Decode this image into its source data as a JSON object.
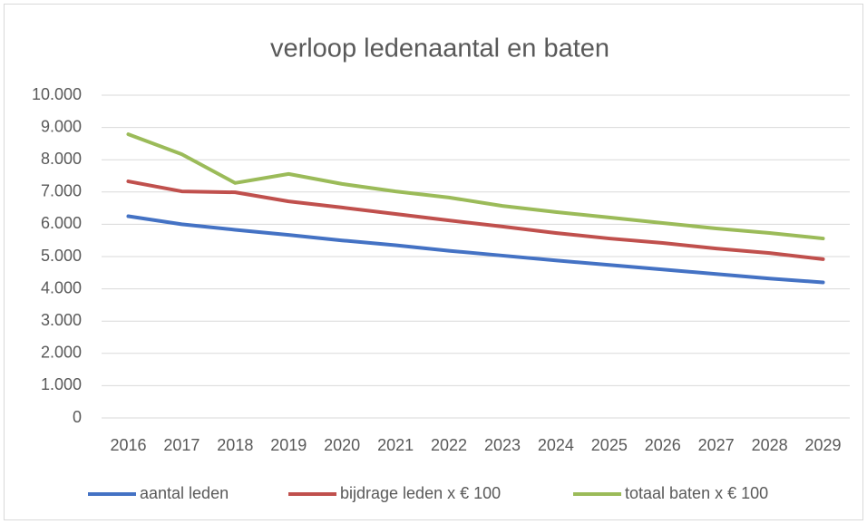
{
  "chart_data": {
    "type": "line",
    "title": "verloop ledenaantal en baten",
    "categories": [
      "2016",
      "2017",
      "2018",
      "2019",
      "2020",
      "2021",
      "2022",
      "2023",
      "2024",
      "2025",
      "2026",
      "2027",
      "2028",
      "2029"
    ],
    "series": [
      {
        "name": "aantal leden",
        "color": "#4472c4",
        "values": [
          6250,
          6000,
          5830,
          5670,
          5500,
          5350,
          5180,
          5030,
          4880,
          4740,
          4600,
          4460,
          4320,
          4200
        ]
      },
      {
        "name": "bijdrage leden x € 100",
        "color": "#c0504d",
        "values": [
          7330,
          7020,
          6990,
          6710,
          6520,
          6320,
          6120,
          5930,
          5730,
          5560,
          5420,
          5250,
          5110,
          4920
        ]
      },
      {
        "name": "totaal baten x € 100",
        "color": "#9bbb59",
        "values": [
          8790,
          8170,
          7280,
          7560,
          7250,
          7020,
          6830,
          6570,
          6380,
          6210,
          6040,
          5870,
          5730,
          5560
        ]
      }
    ],
    "ylim": [
      0,
      10000
    ],
    "yticks": [
      0,
      {
        "value": 1000,
        "label": "1.000"
      },
      {
        "value": 2000,
        "label": "2.000"
      },
      {
        "value": 3000,
        "label": "3.000"
      },
      {
        "value": 4000,
        "label": "4.000"
      },
      {
        "value": 5000,
        "label": "5.000"
      },
      {
        "value": 6000,
        "label": "6.000"
      },
      {
        "value": 7000,
        "label": "7.000"
      },
      {
        "value": 8000,
        "label": "8.000"
      },
      {
        "value": 9000,
        "label": "9.000"
      },
      {
        "value": 10000,
        "label": "10.000"
      }
    ],
    "grid": true,
    "legend": "bottom"
  }
}
